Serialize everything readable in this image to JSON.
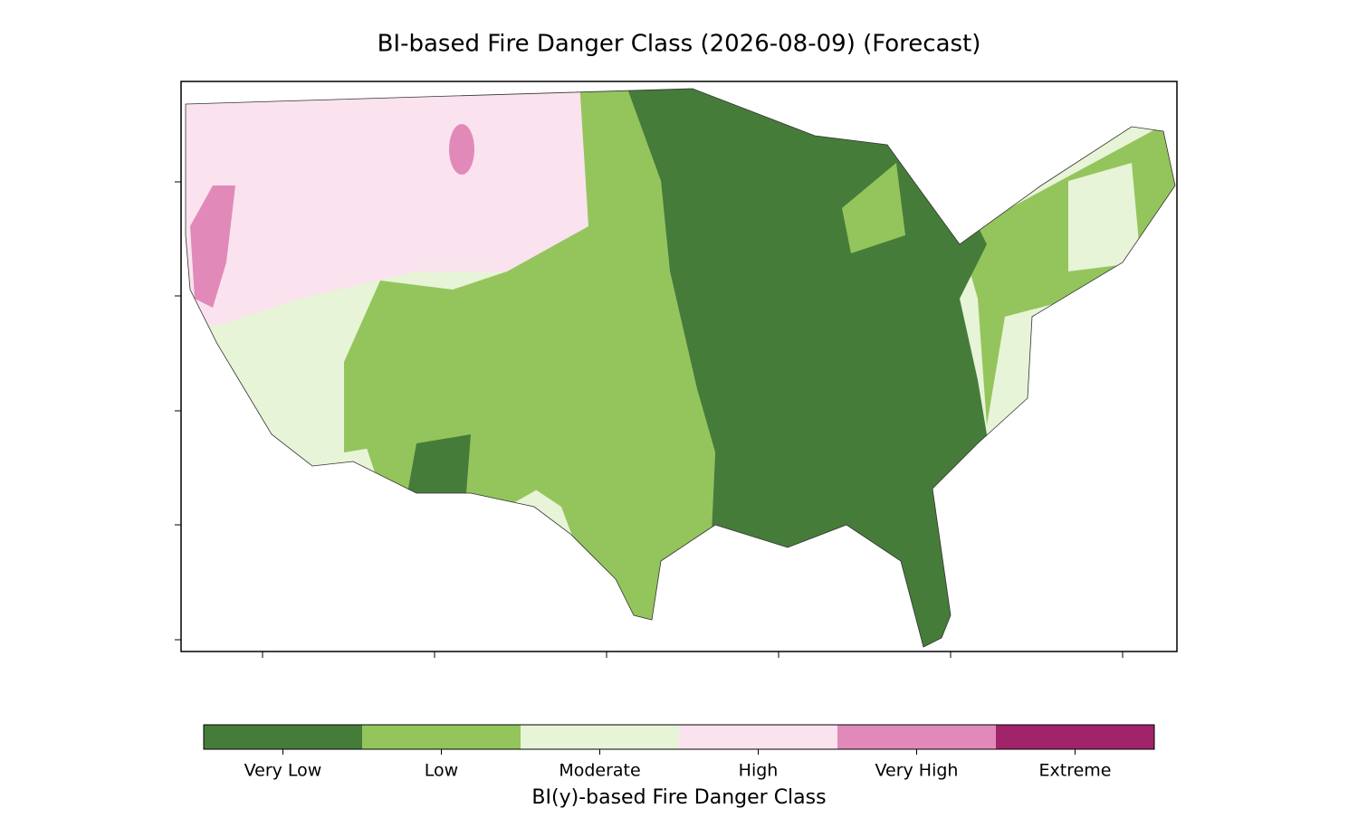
{
  "title": "BI-based Fire Danger Class (2026-08-09) (Forecast)",
  "colorbar": {
    "label": "BI(y)-based Fire Danger Class",
    "classes": [
      {
        "name": "Very Low",
        "color": "#467c3a"
      },
      {
        "name": "Low",
        "color": "#94c55c"
      },
      {
        "name": "Moderate",
        "color": "#e7f4d7"
      },
      {
        "name": "High",
        "color": "#fbe2ef"
      },
      {
        "name": "Very High",
        "color": "#e18ab9"
      },
      {
        "name": "Extreme",
        "color": "#a1246a"
      }
    ]
  }
}
